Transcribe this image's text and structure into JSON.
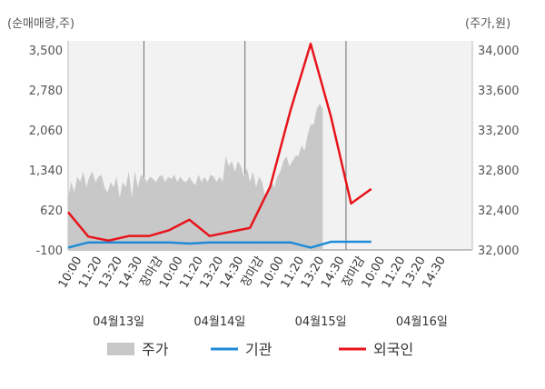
{
  "colors": {
    "price_area": "#c8c8c8",
    "institution": "#1f8bd6",
    "foreign": "#e8141b",
    "plot_bg": "#f2f2f2",
    "grid": "#6b6b6b"
  },
  "chart_data": {
    "type": "line",
    "left_axis_title": "(순매매량,주)",
    "right_axis_title": "(주가,원)",
    "left_ticks": [
      "3,500",
      "2,780",
      "2,060",
      "1,340",
      "620",
      "-100"
    ],
    "right_ticks": [
      "34,000",
      "33,600",
      "33,200",
      "32,800",
      "32,400",
      "32,000"
    ],
    "ylim_left": [
      -100,
      3500
    ],
    "ylim_right": [
      32000,
      34000
    ],
    "x_slots": 20,
    "x_tick_labels": [
      "10:00",
      "11:20",
      "13:20",
      "14:30",
      "장마감",
      "10:00",
      "11:20",
      "13:20",
      "14:30",
      "장마감",
      "10:00",
      "11:20",
      "13:20",
      "14:30",
      "장마감",
      "10:00",
      "11:20",
      "13:20",
      "14:30"
    ],
    "x_tick_label_colors": [
      "#333333",
      "#333333",
      "#333333",
      "#333333",
      "#e8141b",
      "#333333",
      "#333333",
      "#333333",
      "#333333",
      "#e8141b",
      "#333333",
      "#333333",
      "#333333",
      "#333333",
      "#e8141b",
      "#333333",
      "#333333",
      "#333333",
      "#333333"
    ],
    "x_tick_positions": [
      0,
      1,
      2,
      3,
      4,
      5,
      6,
      7,
      8,
      9,
      10,
      11,
      12,
      13,
      14,
      15,
      16,
      17,
      18
    ],
    "day_labels": [
      "04월13일",
      "04월14일",
      "04월15일",
      "04월16일"
    ],
    "day_label_slots": [
      2.5,
      7.5,
      12.5,
      17.5
    ],
    "day_boundaries": [
      3.75,
      8.75,
      13.75
    ],
    "legend": [
      {
        "label": "주가",
        "type": "area"
      },
      {
        "label": "기관",
        "type": "line"
      },
      {
        "label": "외국인",
        "type": "line"
      }
    ],
    "series": [
      {
        "name": "주가",
        "axis": "right",
        "type": "area",
        "x": [
          0,
          0.15,
          0.3,
          0.45,
          0.6,
          0.75,
          0.9,
          1.05,
          1.2,
          1.35,
          1.5,
          1.65,
          1.8,
          1.95,
          2.1,
          2.25,
          2.4,
          2.55,
          2.7,
          2.85,
          3.0,
          3.15,
          3.3,
          3.45,
          3.6,
          3.75,
          3.9,
          4.05,
          4.2,
          4.35,
          4.5,
          4.65,
          4.8,
          4.95,
          5.1,
          5.25,
          5.4,
          5.55,
          5.7,
          5.85,
          6.0,
          6.15,
          6.3,
          6.45,
          6.6,
          6.75,
          6.9,
          7.05,
          7.2,
          7.35,
          7.5,
          7.65,
          7.8,
          7.95,
          8.1,
          8.25,
          8.4,
          8.55,
          8.7,
          8.85,
          9.0,
          9.15,
          9.3,
          9.45,
          9.6,
          9.75,
          9.9,
          10.05,
          10.2,
          10.35,
          10.5,
          10.65,
          10.8,
          10.95,
          11.1,
          11.25,
          11.4,
          11.55,
          11.7,
          11.85,
          12.0,
          12.15,
          12.3,
          12.45,
          12.6
        ],
        "values": [
          32500,
          32650,
          32550,
          32700,
          32650,
          32750,
          32600,
          32700,
          32750,
          32650,
          32700,
          32720,
          32600,
          32550,
          32650,
          32600,
          32700,
          32500,
          32650,
          32600,
          32750,
          32500,
          32750,
          32600,
          32720,
          32700,
          32650,
          32700,
          32680,
          32650,
          32700,
          32720,
          32650,
          32700,
          32680,
          32720,
          32650,
          32700,
          32660,
          32650,
          32700,
          32650,
          32620,
          32720,
          32650,
          32700,
          32650,
          32720,
          32700,
          32650,
          32700,
          32650,
          32900,
          32800,
          32850,
          32750,
          32850,
          32800,
          32700,
          32780,
          32650,
          32750,
          32600,
          32700,
          32650,
          32500,
          32550,
          32650,
          32600,
          32700,
          32750,
          32850,
          32900,
          32800,
          32850,
          32900,
          32900,
          33000,
          32950,
          33100,
          33200,
          33200,
          33350,
          33400,
          33350
        ]
      },
      {
        "name": "기관",
        "axis": "left",
        "type": "line",
        "x": [
          0,
          1,
          2,
          3,
          4,
          5,
          6,
          7,
          8,
          9,
          10,
          11,
          12,
          13,
          14,
          15
        ],
        "values": [
          -60,
          30,
          30,
          30,
          30,
          30,
          10,
          30,
          30,
          30,
          30,
          30,
          -60,
          40,
          40,
          40
        ]
      },
      {
        "name": "외국인",
        "axis": "left",
        "type": "line",
        "x": [
          0,
          1,
          2,
          3,
          4,
          5,
          6,
          7,
          8,
          9,
          10,
          11,
          12,
          13,
          14,
          15
        ],
        "values": [
          550,
          130,
          60,
          140,
          140,
          240,
          420,
          140,
          210,
          280,
          990,
          2300,
          3450,
          2200,
          700,
          950
        ]
      }
    ]
  }
}
